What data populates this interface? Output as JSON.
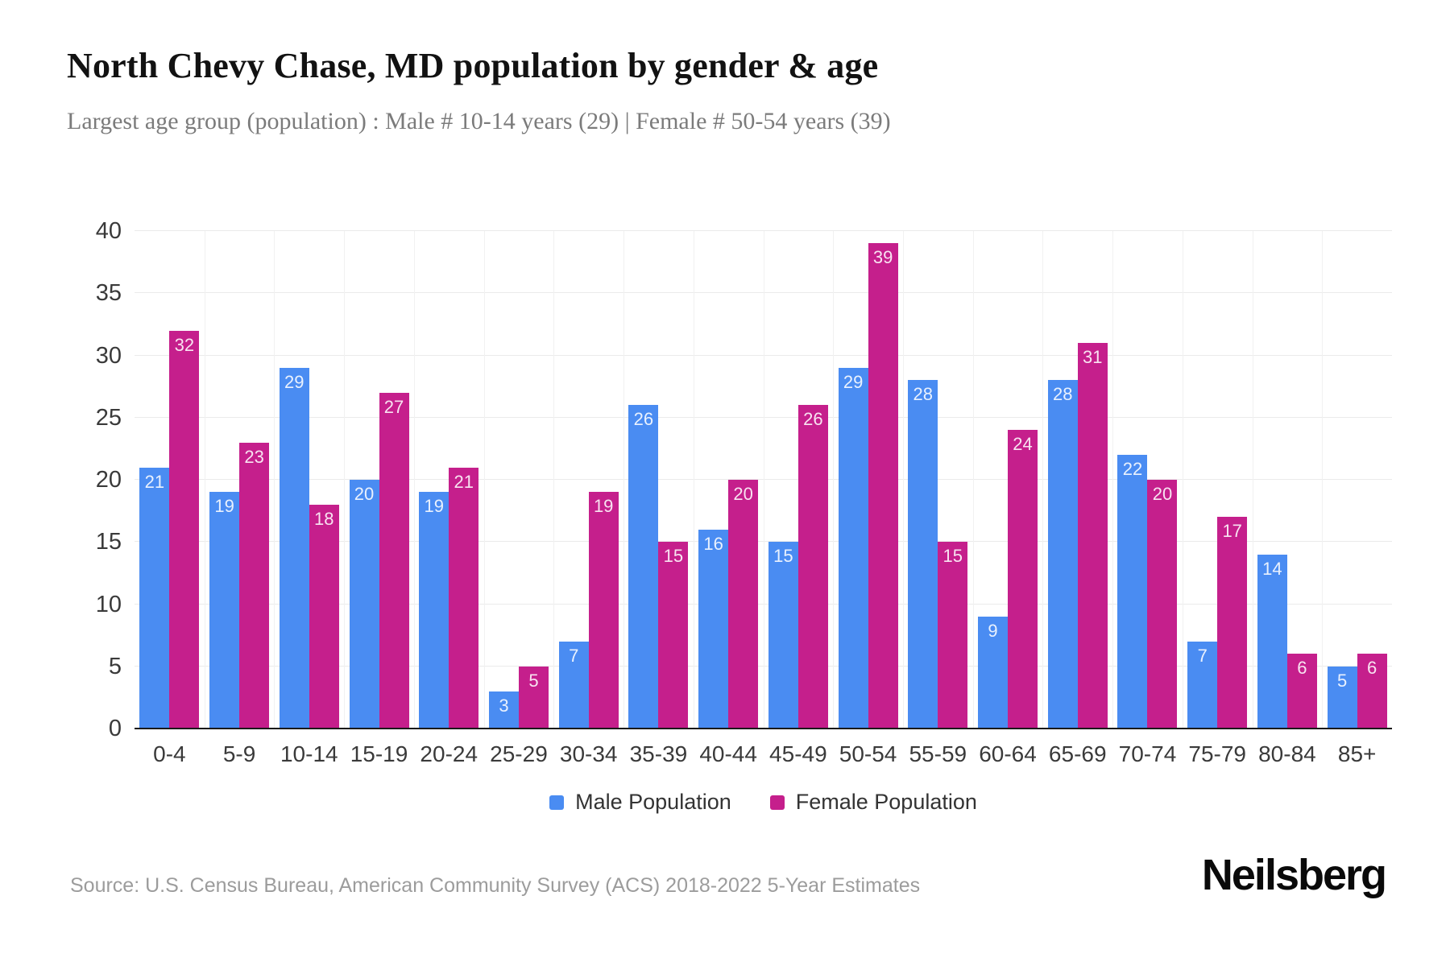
{
  "header": {
    "title": "North Chevy Chase, MD population by gender & age",
    "subtitle": "Largest age group (population) : Male # 10-14 years (29) | Female # 50-54 years (39)"
  },
  "footer": {
    "source": "Source: U.S. Census Bureau, American Community Survey (ACS) 2018-2022 5-Year Estimates",
    "brand": "Neilsberg"
  },
  "colors": {
    "male": "#4a8cf2",
    "female": "#c51f8c",
    "hgrid": "#ebebeb",
    "vgrid": "#f1f1f1",
    "axis_line": "#1a1a1a",
    "tick_label": "#3a3a3a",
    "bar_value_label": "rgba(255,255,255,0.88)"
  },
  "legend": [
    {
      "label": "Male Population",
      "color": "#4a8cf2"
    },
    {
      "label": "Female Population",
      "color": "#c51f8c"
    }
  ],
  "chart_data": {
    "type": "bar",
    "title": "North Chevy Chase, MD population by gender & age",
    "subtitle": "Largest age group (population) : Male # 10-14 years (29) | Female # 50-54 years (39)",
    "categories": [
      "0-4",
      "5-9",
      "10-14",
      "15-19",
      "20-24",
      "25-29",
      "30-34",
      "35-39",
      "40-44",
      "45-49",
      "50-54",
      "55-59",
      "60-64",
      "65-69",
      "70-74",
      "75-79",
      "80-84",
      "85+"
    ],
    "series": [
      {
        "name": "Male Population",
        "color": "#4a8cf2",
        "values": [
          21,
          19,
          29,
          20,
          19,
          3,
          7,
          26,
          16,
          15,
          29,
          28,
          9,
          28,
          22,
          7,
          14,
          5
        ]
      },
      {
        "name": "Female Population",
        "color": "#c51f8c",
        "values": [
          32,
          23,
          18,
          27,
          21,
          5,
          19,
          15,
          20,
          26,
          39,
          15,
          24,
          31,
          20,
          17,
          6,
          6
        ]
      }
    ],
    "xlabel": "",
    "ylabel": "",
    "ylim": [
      0,
      40
    ],
    "yticks": [
      0,
      5,
      10,
      15,
      20,
      25,
      30,
      35,
      40
    ],
    "grid": true,
    "value_labels": "inside-top",
    "legend_position": "bottom"
  }
}
